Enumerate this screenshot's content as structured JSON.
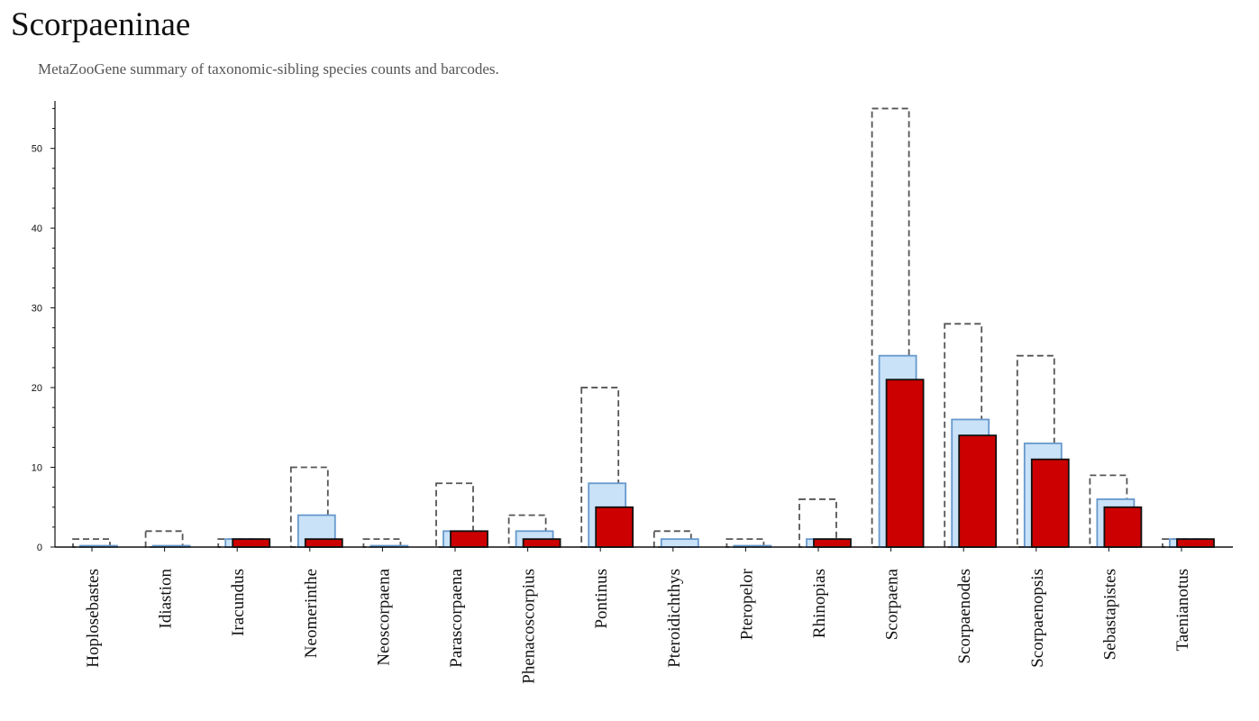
{
  "header": {
    "title": "Scorpaeninae",
    "subtitle": "MetaZooGene summary of taxonomic-sibling species counts and barcodes."
  },
  "colors": {
    "outline_dashed": "#555555",
    "light_fill": "#c9e2f8",
    "light_stroke": "#6699cc",
    "dark_fill": "#cc0000",
    "dark_stroke": "#111111"
  },
  "chart_data": {
    "type": "bar",
    "title": "Scorpaeninae",
    "subtitle": "MetaZooGene summary of taxonomic-sibling species counts and barcodes.",
    "xlabel": "",
    "ylabel": "",
    "ylim": [
      0,
      55.5
    ],
    "yticks": [
      0,
      10,
      20,
      30,
      40,
      50
    ],
    "grid": false,
    "categories": [
      "Hoplosebastes",
      "Idiastion",
      "Iracundus",
      "Neomerinthe",
      "Neoscorpaena",
      "Parascorpaena",
      "Phenacoscorpius",
      "Pontinus",
      "Pteroidichthys",
      "Pteropelor",
      "Rhinopias",
      "Scorpaena",
      "Scorpaenodes",
      "Scorpaenopsis",
      "Sebastapistes",
      "Taenianotus"
    ],
    "series": [
      {
        "style": "dashed-outline",
        "values": [
          1,
          2,
          1,
          10,
          1,
          8,
          4,
          20,
          2,
          1,
          6,
          55,
          28,
          24,
          9,
          1
        ]
      },
      {
        "style": "light-blue",
        "values": [
          0,
          0,
          1,
          4,
          0,
          2,
          2,
          8,
          1,
          0,
          1,
          24,
          16,
          13,
          6,
          1
        ]
      },
      {
        "style": "red",
        "values": [
          0,
          0,
          1,
          1,
          0,
          2,
          1,
          5,
          0,
          0,
          1,
          21,
          14,
          11,
          5,
          1
        ]
      }
    ]
  }
}
